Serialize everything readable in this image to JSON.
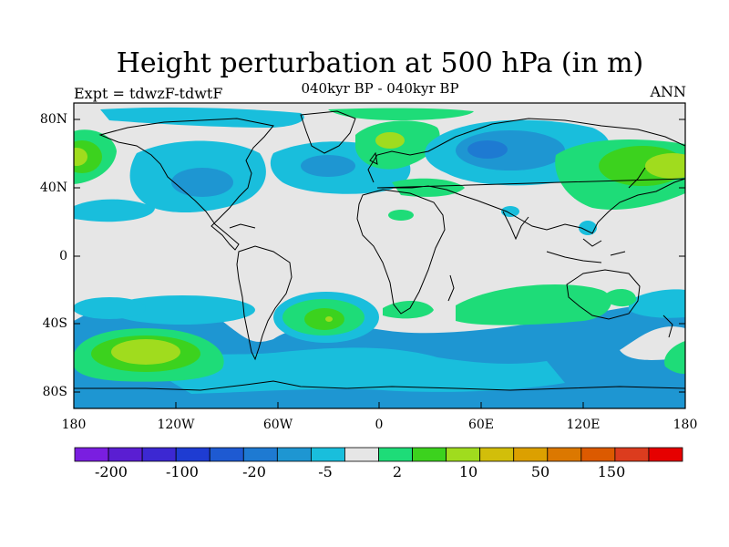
{
  "figure": {
    "title": "Height perturbation at 500 hPa (in m)",
    "subtitle": "040kyr BP - 040kyr BP",
    "left_label": "Expt = tdwzF-tdwtF",
    "right_label": "ANN"
  },
  "axes": {
    "lat_labels": [
      "80N",
      "40N",
      "0",
      "40S",
      "80S"
    ],
    "lon_labels": [
      "180",
      "120W",
      "60W",
      "0",
      "60E",
      "120E",
      "180"
    ]
  },
  "colorbar": {
    "colors": [
      "#7a1ee0",
      "#5a1ed2",
      "#3c28d2",
      "#1e3cd2",
      "#1e5ad2",
      "#1e7ad2",
      "#1e96d2",
      "#19bedc",
      "#e6e6e6",
      "#1edc78",
      "#3cd21e",
      "#a0dc1e",
      "#d2be0a",
      "#dca000",
      "#dc7800",
      "#dc5a00",
      "#dc3c1e",
      "#e60000"
    ],
    "tick_labels": [
      "-200",
      "-100",
      "-20",
      "-5",
      "2",
      "10",
      "50",
      "150"
    ]
  },
  "chart_data": {
    "type": "heatmap",
    "title": "Height perturbation at 500 hPa (in m)",
    "subtitle": "040kyr BP - 040kyr BP",
    "xlabel": "",
    "ylabel": "",
    "x_ticks": [
      "180",
      "120W",
      "60W",
      "0",
      "60E",
      "120E",
      "180"
    ],
    "y_ticks": [
      "80N",
      "40N",
      "0",
      "40S",
      "80S"
    ],
    "xlim": [
      -180,
      180
    ],
    "ylim": [
      -90,
      90
    ],
    "levels": [
      -200,
      -150,
      -100,
      -50,
      -20,
      -10,
      -5,
      -2,
      2,
      5,
      10,
      20,
      50,
      100,
      150,
      200
    ],
    "background_value_range": [
      -2,
      2
    ],
    "features": [
      {
        "name": "North Atlantic low",
        "lon": -20,
        "lat": 52,
        "value_range": [
          -10,
          -5
        ]
      },
      {
        "name": "North Pacific / Alaska low",
        "lon": -90,
        "lat": 60,
        "value_range": [
          -10,
          -5
        ]
      },
      {
        "name": "Eurasian Arctic low",
        "lon": 65,
        "lat": 62,
        "value_range": [
          -20,
          -10
        ]
      },
      {
        "name": "Greenland high",
        "lon": 0,
        "lat": 65,
        "value_range": [
          5,
          10
        ]
      },
      {
        "name": "Bering high",
        "lon": -175,
        "lat": 60,
        "value_range": [
          10,
          20
        ]
      },
      {
        "name": "East Asia high",
        "lon": 160,
        "lat": 58,
        "value_range": [
          10,
          20
        ]
      },
      {
        "name": "South Atlantic high",
        "lon": -35,
        "lat": -37,
        "value_range": [
          10,
          20
        ]
      },
      {
        "name": "South Pacific high",
        "lon": -135,
        "lat": -55,
        "value_range": [
          10,
          20
        ]
      },
      {
        "name": "Southern Ocean low belt",
        "lon": 0,
        "lat": -67,
        "value_range": [
          -10,
          -5
        ]
      }
    ]
  }
}
